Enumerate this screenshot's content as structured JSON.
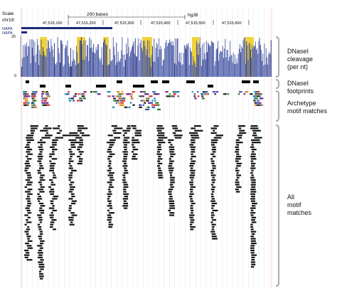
{
  "header": {
    "scale_label": "Scale",
    "chrom_label": "chr19:",
    "scale_text": "200 bases",
    "assembly": "hg38",
    "positions": [
      "47,515,100",
      "47,515,200",
      "47,515,300",
      "47,515,400",
      "47,515,500",
      "47,515,600"
    ]
  },
  "gene": {
    "names": [
      "NAPA",
      "NAPA"
    ]
  },
  "cleavage_track": {
    "y_max": "25",
    "y_min": "0",
    "colors": {
      "bars": "#4a5aa8",
      "peaks": "#f2d23a",
      "accent": "#1f2a7a"
    }
  },
  "labels": {
    "cleavage": [
      "DNaseI",
      "cleavage",
      "(per nt)"
    ],
    "footprints": [
      "DNaseI",
      "footprints"
    ],
    "archetype": [
      "Archetype",
      "motif matches"
    ],
    "all_motifs": [
      "All",
      "motif",
      "matches"
    ]
  }
}
